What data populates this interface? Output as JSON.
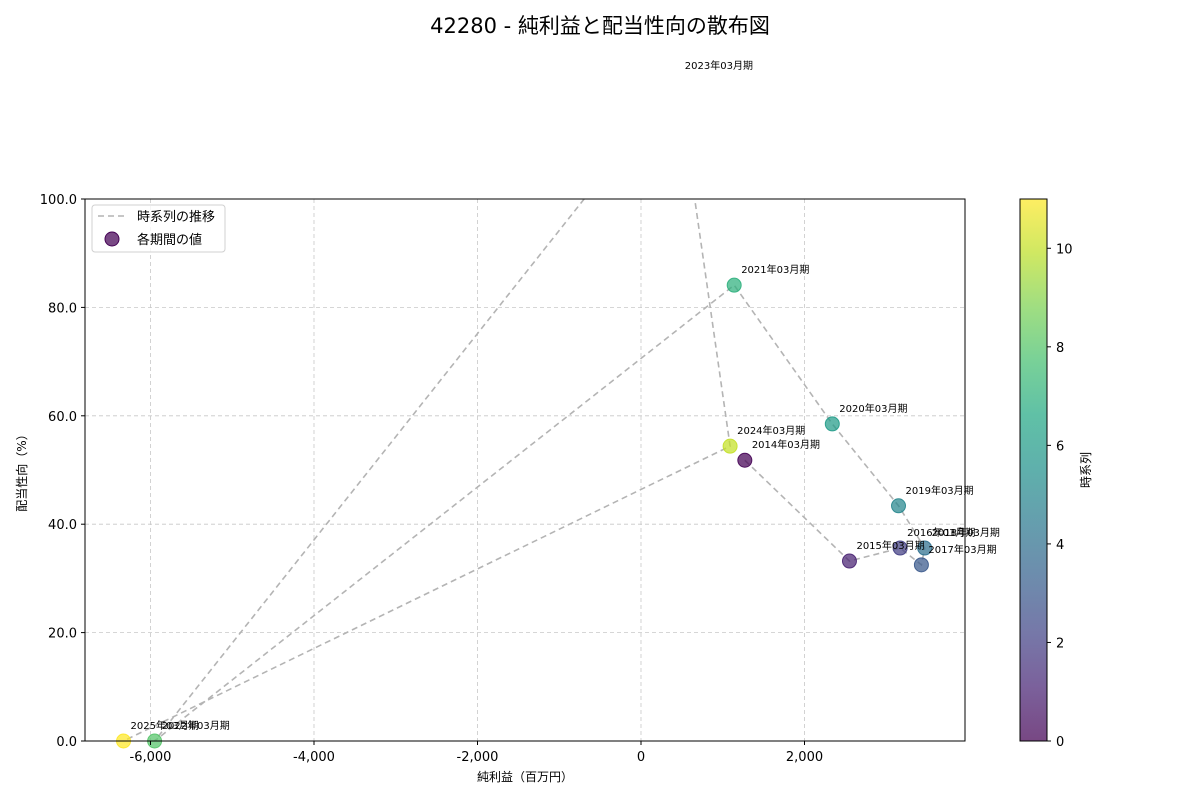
{
  "title": "42280 - 純利益と配当性向の散布図",
  "chart_data": {
    "type": "scatter",
    "title": "42280 - 純利益と配当性向の散布図",
    "xlabel": "純利益（百万円）",
    "ylabel": "配当性向（%）",
    "xlim": [
      -6800,
      3950
    ],
    "ylim": [
      0,
      100
    ],
    "x_ticks": [
      -6000,
      -4000,
      -2000,
      0,
      2000
    ],
    "x_tick_labels": [
      "-6,000",
      "-4,000",
      "-2,000",
      "0",
      "2,000"
    ],
    "y_ticks": [
      0,
      20,
      40,
      60,
      80,
      100
    ],
    "y_tick_labels": [
      "0.0",
      "20.0",
      "40.0",
      "60.0",
      "80.0",
      "100.0"
    ],
    "grid": true,
    "legend": {
      "position": "upper left",
      "entries": [
        "時系列の推移",
        "各期間の値"
      ]
    },
    "colorbar": {
      "label": "時系列",
      "range": [
        0,
        11
      ],
      "ticks": [
        0,
        2,
        4,
        6,
        8,
        10
      ],
      "colormap": "viridis"
    },
    "points": [
      {
        "label": "2014年03月期",
        "t": 0,
        "x": 1270,
        "y": 51.8
      },
      {
        "label": "2015年03月期",
        "t": 1,
        "x": 2550,
        "y": 33.2
      },
      {
        "label": "2016年03月期",
        "t": 2,
        "x": 3170,
        "y": 35.6
      },
      {
        "label": "2017年03月期",
        "t": 3,
        "x": 3430,
        "y": 32.5
      },
      {
        "label": "2018年03月期",
        "t": 4,
        "x": 3470,
        "y": 35.6
      },
      {
        "label": "2019年03月期",
        "t": 5,
        "x": 3150,
        "y": 43.4
      },
      {
        "label": "2020年03月期",
        "t": 6,
        "x": 2340,
        "y": 58.5
      },
      {
        "label": "2021年03月期",
        "t": 7,
        "x": 1140,
        "y": 84.1
      },
      {
        "label": "2022年03月期",
        "t": 8,
        "x": -5950,
        "y": 0.0
      },
      {
        "label": "2023年03月期",
        "t": 9,
        "x": 450,
        "y": 121.8
      },
      {
        "label": "2024年03月期",
        "t": 10,
        "x": 1090,
        "y": 54.4
      },
      {
        "label": "2025年03月期",
        "t": 11,
        "x": -6330,
        "y": 0.0
      }
    ]
  }
}
